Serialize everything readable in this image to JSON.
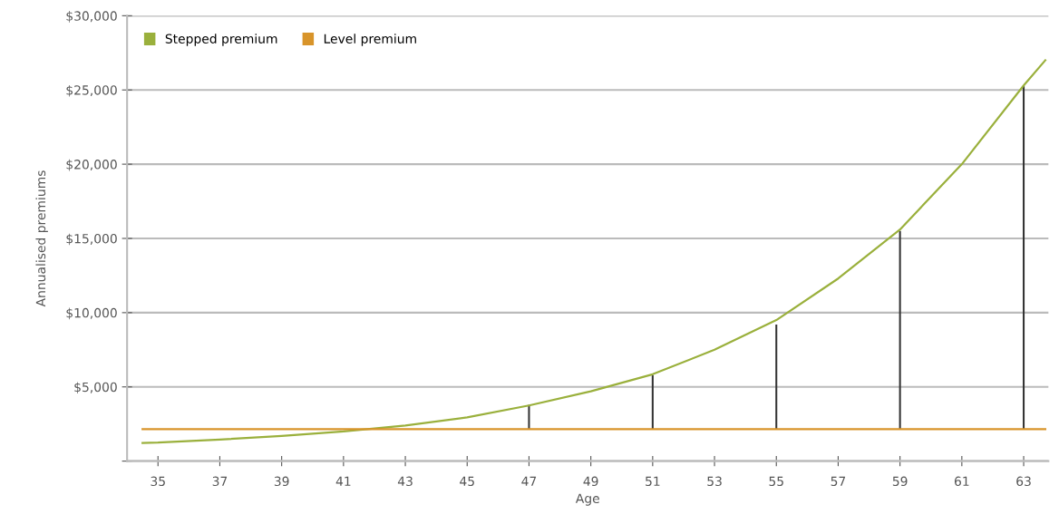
{
  "chart_data": {
    "type": "line",
    "xlabel": "Age",
    "ylabel": "Annualised premiums",
    "xlim": [
      34,
      63.8
    ],
    "ylim": [
      0,
      30000
    ],
    "xticks": [
      35,
      37,
      39,
      41,
      43,
      45,
      47,
      49,
      51,
      53,
      55,
      57,
      59,
      61,
      63
    ],
    "yticks": [
      {
        "value": 0,
        "label": null
      },
      {
        "value": 5000,
        "label": "$5,000"
      },
      {
        "value": 10000,
        "label": "$10,000"
      },
      {
        "value": 15000,
        "label": "$15,000"
      },
      {
        "value": 20000,
        "label": "$20,000"
      },
      {
        "value": 25000,
        "label": "$25,000"
      },
      {
        "value": 30000,
        "label": "$30,000"
      }
    ],
    "grid": "y",
    "legend": "top left",
    "series": [
      {
        "name": "Stepped premium",
        "color": "#9ab03c",
        "x": [
          34.5,
          35,
          37,
          39,
          41,
          43,
          45,
          47,
          49,
          51,
          53,
          55,
          57,
          59,
          61,
          63,
          63.7
        ],
        "values": [
          1230,
          1250,
          1450,
          1700,
          2000,
          2400,
          2950,
          3750,
          4700,
          5850,
          7500,
          9500,
          12300,
          15600,
          20000,
          25300,
          27000
        ]
      },
      {
        "name": "Level premium",
        "color": "#d8942a",
        "x": [
          34.5,
          63.7
        ],
        "values": [
          2150,
          2150
        ]
      },
      {
        "type": "bar",
        "color": "#333333",
        "x": [
          47,
          51,
          55,
          59,
          63
        ],
        "base": [
          2150,
          2150,
          2150,
          2150,
          2150
        ],
        "values": [
          1650,
          3650,
          7050,
          13350,
          23150
        ]
      }
    ]
  }
}
